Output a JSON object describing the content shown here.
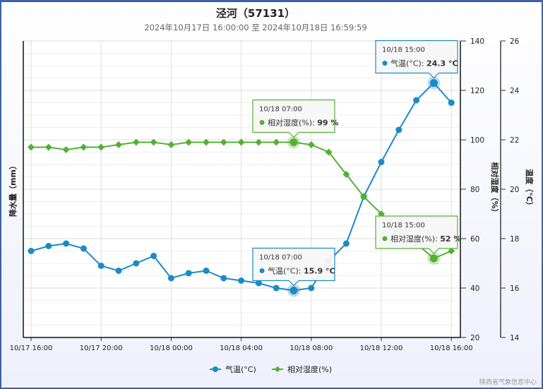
{
  "header": {
    "title": "泾河（57131）",
    "subtitle": "2024年10月17日 16:00:00 至 2024年10月18日 16:59:59"
  },
  "footer": {
    "credit": "陕西省气象信息中心"
  },
  "colors": {
    "temp": "#1a8bc4",
    "humidity": "#55b034"
  },
  "chart_data": {
    "type": "line",
    "title": "泾河（57131）",
    "x": [
      "10/17 16:00",
      "10/17 17:00",
      "10/17 18:00",
      "10/17 19:00",
      "10/17 20:00",
      "10/17 21:00",
      "10/17 22:00",
      "10/17 23:00",
      "10/18 00:00",
      "10/18 01:00",
      "10/18 02:00",
      "10/18 03:00",
      "10/18 04:00",
      "10/18 05:00",
      "10/18 06:00",
      "10/18 07:00",
      "10/18 08:00",
      "10/18 09:00",
      "10/18 10:00",
      "10/18 11:00",
      "10/18 12:00",
      "10/18 13:00",
      "10/18 14:00",
      "10/18 15:00",
      "10/18 16:00"
    ],
    "xticks": [
      "10/17 16:00",
      "10/17 20:00",
      "10/18 00:00",
      "10/18 04:00",
      "10/18 08:00",
      "10/18 12:00",
      "10/18 16:00"
    ],
    "series": [
      {
        "name": "气温(°C)",
        "axis": "temp",
        "values": [
          17.5,
          17.7,
          17.8,
          17.6,
          16.9,
          16.7,
          17.0,
          17.3,
          16.4,
          16.6,
          16.7,
          16.4,
          16.3,
          16.2,
          16.0,
          15.9,
          16.0,
          17.1,
          17.8,
          19.7,
          21.1,
          22.4,
          23.6,
          24.3,
          23.5
        ]
      },
      {
        "name": "相对湿度(%)",
        "axis": "humidity",
        "values": [
          97,
          97,
          96,
          97,
          97,
          98,
          99,
          99,
          98,
          99,
          99,
          99,
          99,
          99,
          99,
          99,
          98,
          95,
          86,
          77,
          70,
          64,
          58,
          52,
          55
        ]
      }
    ],
    "axes": {
      "precip": {
        "label": "降水量（mm）"
      },
      "humidity": {
        "label": "相对湿度（%）",
        "range": [
          20,
          140
        ],
        "ticks": [
          "20",
          "40",
          "60",
          "80",
          "100",
          "120",
          "140"
        ]
      },
      "temp": {
        "label": "温度（°C）",
        "range": [
          14,
          26
        ],
        "ticks": [
          "14",
          "16",
          "18",
          "20",
          "22",
          "24",
          "26"
        ]
      }
    },
    "legend": {
      "placement": "bottom",
      "items": [
        "气温(°C)",
        "相对湿度(%)"
      ]
    },
    "tooltips": [
      {
        "time": "10/18 15:00",
        "label": "气温(°C): ",
        "value": "24.3 °C",
        "series": 0,
        "index": 23
      },
      {
        "time": "10/18 07:00",
        "label": "相对湿度(%): ",
        "value": "99 %",
        "series": 1,
        "index": 15
      },
      {
        "time": "10/18 07:00",
        "label": "气温(°C): ",
        "value": "15.9 °C",
        "series": 0,
        "index": 15
      },
      {
        "time": "10/18 15:00",
        "label": "相对湿度(%): ",
        "value": "52 %",
        "series": 1,
        "index": 23
      }
    ]
  }
}
